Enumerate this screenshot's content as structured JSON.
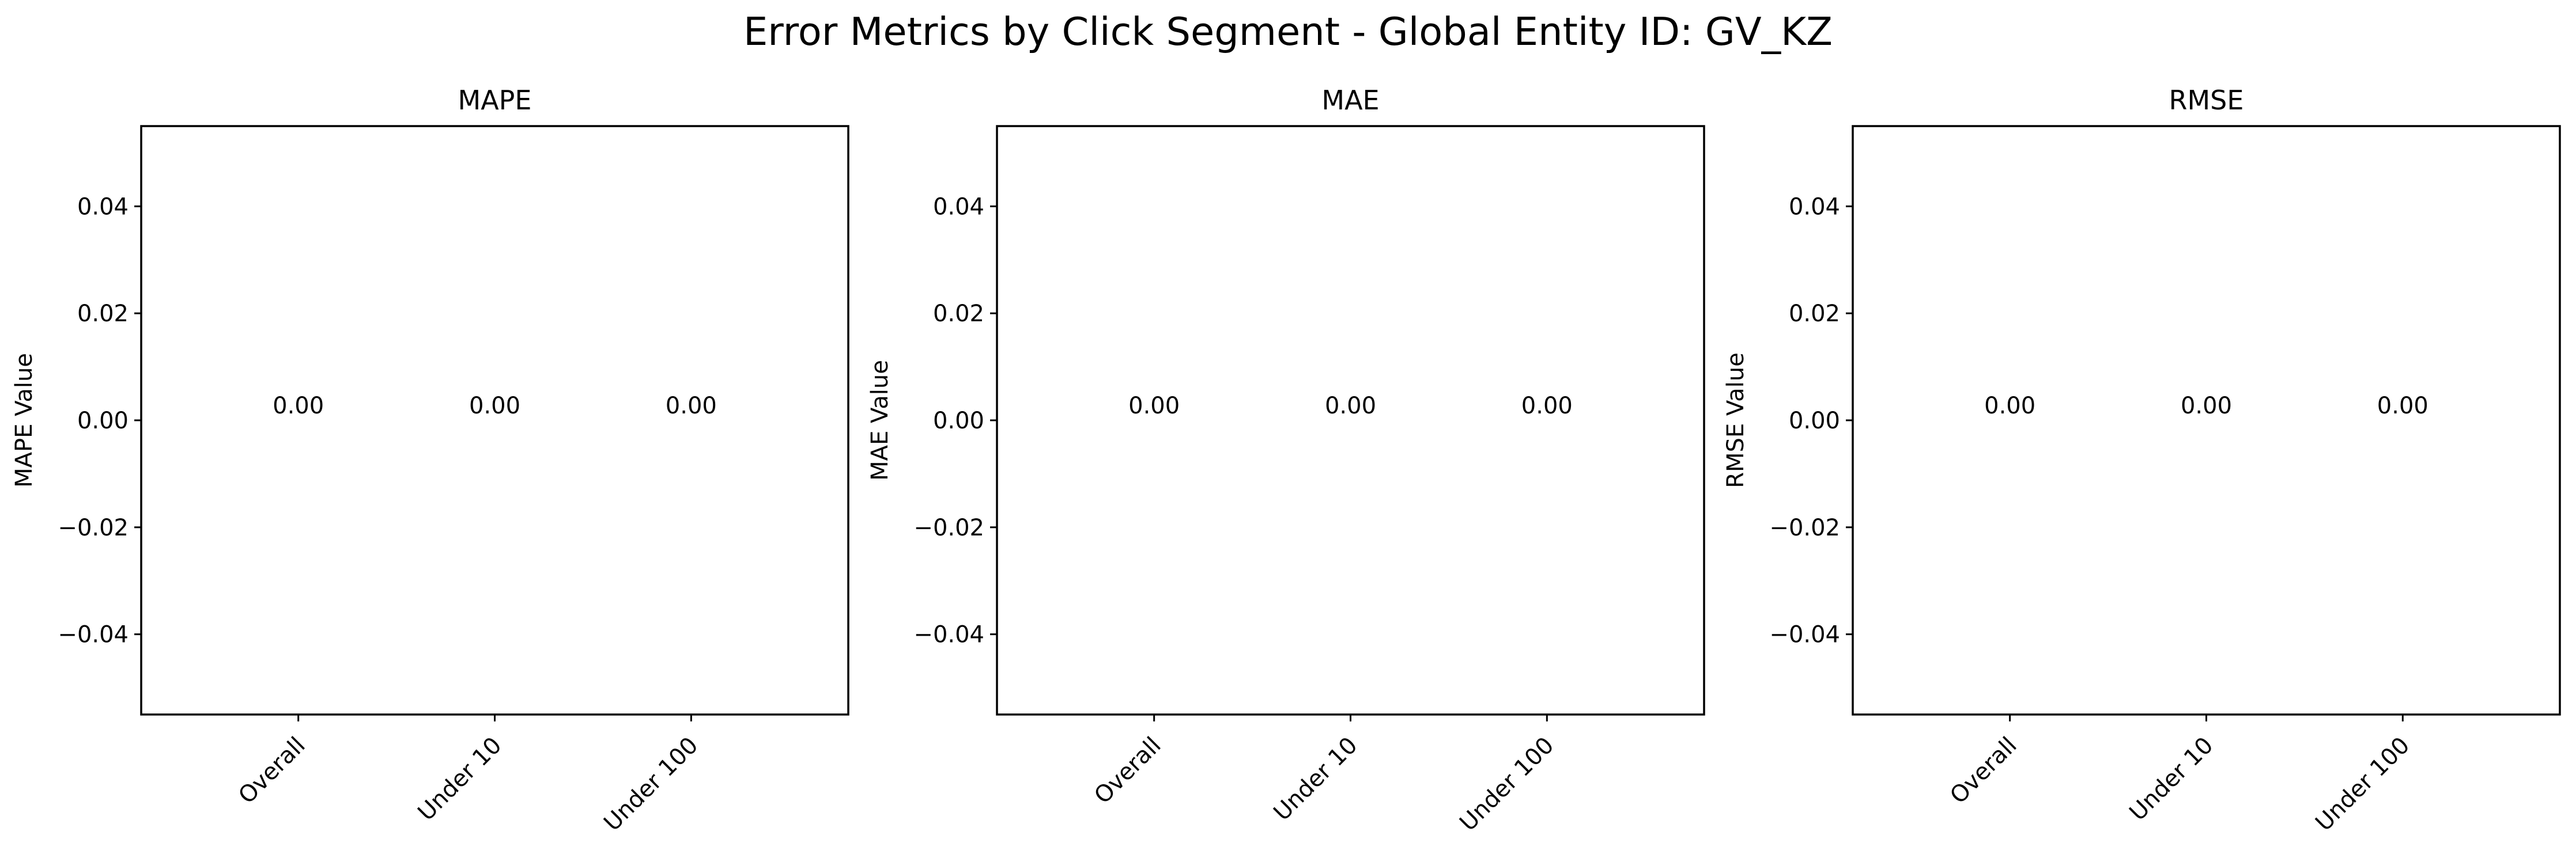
{
  "figure": {
    "title": "Error Metrics by Click Segment - Global Entity ID: GV_KZ"
  },
  "chart_data": [
    {
      "type": "bar",
      "title": "MAPE",
      "xlabel": "",
      "ylabel": "MAPE Value",
      "categories": [
        "Overall",
        "Under 10",
        "Under 100"
      ],
      "values": [
        0.0,
        0.0,
        0.0
      ],
      "data_labels": [
        "0.00",
        "0.00",
        "0.00"
      ],
      "ylim": [
        -0.055,
        0.055
      ],
      "yticks": [
        -0.04,
        -0.02,
        0.0,
        0.02,
        0.04
      ],
      "ytick_labels": [
        "−0.04",
        "−0.02",
        "0.00",
        "0.02",
        "0.04"
      ],
      "grid": false,
      "legend": "none"
    },
    {
      "type": "bar",
      "title": "MAE",
      "xlabel": "",
      "ylabel": "MAE Value",
      "categories": [
        "Overall",
        "Under 10",
        "Under 100"
      ],
      "values": [
        0.0,
        0.0,
        0.0
      ],
      "data_labels": [
        "0.00",
        "0.00",
        "0.00"
      ],
      "ylim": [
        -0.055,
        0.055
      ],
      "yticks": [
        -0.04,
        -0.02,
        0.0,
        0.02,
        0.04
      ],
      "ytick_labels": [
        "−0.04",
        "−0.02",
        "0.00",
        "0.02",
        "0.04"
      ],
      "grid": false,
      "legend": "none"
    },
    {
      "type": "bar",
      "title": "RMSE",
      "xlabel": "",
      "ylabel": "RMSE Value",
      "categories": [
        "Overall",
        "Under 10",
        "Under 100"
      ],
      "values": [
        0.0,
        0.0,
        0.0
      ],
      "data_labels": [
        "0.00",
        "0.00",
        "0.00"
      ],
      "ylim": [
        -0.055,
        0.055
      ],
      "yticks": [
        -0.04,
        -0.02,
        0.0,
        0.02,
        0.04
      ],
      "ytick_labels": [
        "−0.04",
        "−0.02",
        "0.00",
        "0.02",
        "0.04"
      ],
      "grid": false,
      "legend": "none"
    }
  ]
}
